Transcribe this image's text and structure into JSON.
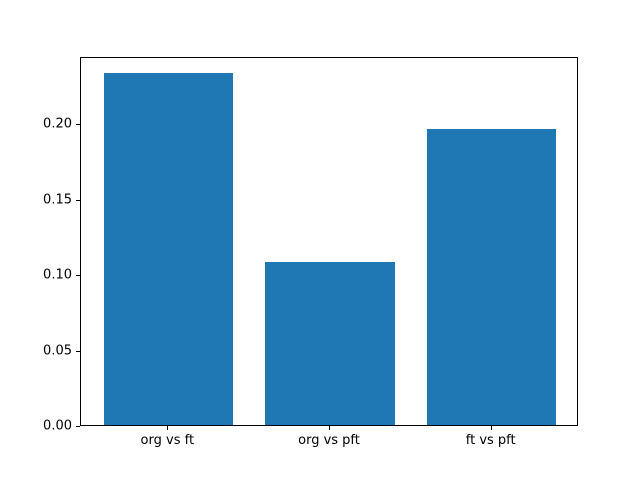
{
  "chart_data": {
    "type": "bar",
    "title": "",
    "xlabel": "",
    "ylabel": "",
    "categories": [
      "org vs ft",
      "org vs pft",
      "ft vs pft"
    ],
    "values": [
      0.233,
      0.108,
      0.196
    ],
    "ytick_labels": [
      "0.00",
      "0.05",
      "0.10",
      "0.15",
      "0.20"
    ],
    "yticks": [
      0.0,
      0.05,
      0.1,
      0.15,
      0.2
    ],
    "ylim": [
      0,
      0.2444
    ],
    "xlim": [
      -0.54,
      2.54
    ],
    "bar_width": 0.8,
    "bar_color": "#1f77b4",
    "spine_color": "#000000",
    "background_color": "#ffffff",
    "grid": false,
    "legend": null
  }
}
